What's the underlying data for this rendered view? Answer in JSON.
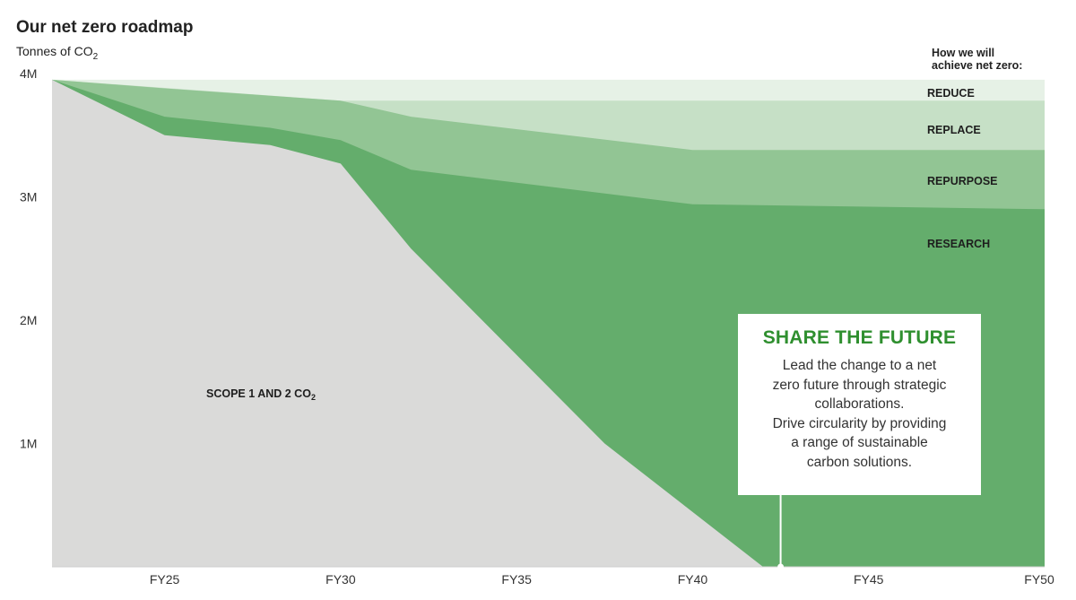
{
  "chart_data": {
    "type": "area",
    "title": "Our net zero roadmap",
    "ylabel": "Tonnes of CO",
    "ylabel_sub": "2",
    "ylim": [
      0,
      4000000
    ],
    "yticks": [
      {
        "value": 1000000,
        "label": "1M"
      },
      {
        "value": 2000000,
        "label": "2M"
      },
      {
        "value": 3000000,
        "label": "3M"
      },
      {
        "value": 4000000,
        "label": "4M"
      }
    ],
    "xlim": [
      2021.8,
      2050
    ],
    "xticks": [
      {
        "value": 2025,
        "label": "FY25"
      },
      {
        "value": 2030,
        "label": "FY30"
      },
      {
        "value": 2035,
        "label": "FY35"
      },
      {
        "value": 2040,
        "label": "FY40"
      },
      {
        "value": 2045,
        "label": "FY45"
      },
      {
        "value": 2050,
        "label": "FY50"
      }
    ],
    "legend_title": [
      "How we will",
      "achieve net zero:"
    ],
    "series": [
      {
        "name": "SCOPE 1 AND 2 CO",
        "name_sub": "2",
        "color": "#dadad9",
        "x": [
          2021.8,
          2025,
          2028,
          2030,
          2032,
          2037.5,
          2042
        ],
        "y": [
          3950000,
          3500000,
          3420000,
          3270000,
          2580000,
          1000000,
          0
        ]
      },
      {
        "name": "RESEARCH",
        "color": "#64ad6c",
        "x": [
          2021.8,
          2025,
          2028,
          2030,
          2032,
          2040,
          2050
        ],
        "y": [
          3950000,
          3650000,
          3560000,
          3460000,
          3220000,
          2940000,
          2900000
        ]
      },
      {
        "name": "REPURPOSE",
        "color": "#92c594",
        "x": [
          2021.8,
          2025,
          2030,
          2032,
          2040,
          2050
        ],
        "y": [
          3950000,
          3880000,
          3780000,
          3650000,
          3380000,
          3380000
        ]
      },
      {
        "name": "REPLACE",
        "color": "#c6e0c6",
        "x": [
          2021.8,
          2030,
          2032,
          2050
        ],
        "y": [
          3950000,
          3780000,
          3780000,
          3780000
        ]
      },
      {
        "name": "REDUCE",
        "color": "#e6f1e6",
        "x": [
          2021.8,
          2050
        ],
        "y": [
          3950000,
          3950000
        ]
      }
    ],
    "annotation": {
      "x": 2042.5,
      "title": "SHARE THE FUTURE",
      "lines": [
        "Lead the change to a net",
        "zero future through strategic",
        "collaborations.",
        "Drive circularity by providing",
        "a range of sustainable",
        "carbon solutions."
      ]
    }
  }
}
